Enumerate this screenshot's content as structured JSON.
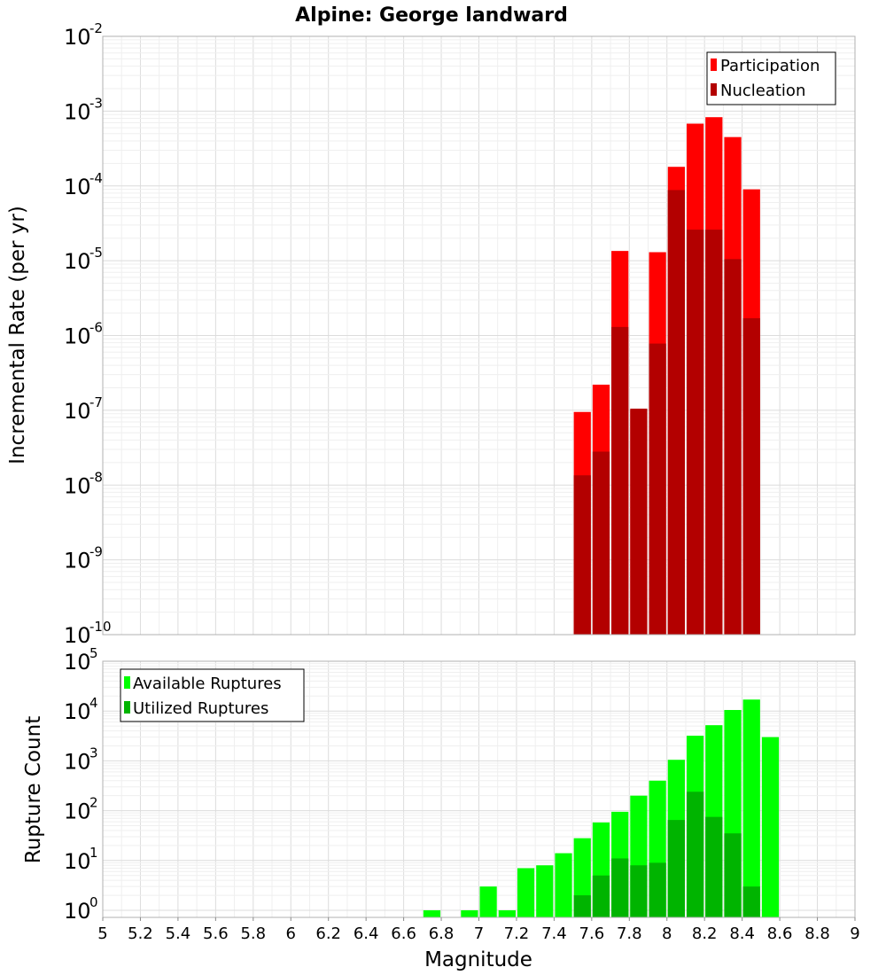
{
  "chart_data": [
    {
      "type": "bar",
      "title": "Alpine: George landward",
      "ylabel": "Incremental Rate (per yr)",
      "y_scale": "log",
      "ylim": [
        1e-10,
        0.01
      ],
      "xlim": [
        5,
        9
      ],
      "x": [
        7.55,
        7.65,
        7.75,
        7.85,
        7.95,
        8.05,
        8.15,
        8.25,
        8.35,
        8.45
      ],
      "series": [
        {
          "name": "Participation",
          "color": "#ff0000",
          "values": [
            9.5e-08,
            2.2e-07,
            1.35e-05,
            1e-07,
            1.3e-05,
            0.00018,
            0.00068,
            0.00083,
            0.00045,
            9e-05
          ]
        },
        {
          "name": "Nucleation",
          "color": "#b30000",
          "values": [
            1.35e-08,
            2.8e-08,
            1.3e-06,
            1.05e-07,
            7.8e-07,
            8.8e-05,
            2.6e-05,
            2.6e-05,
            1.05e-05,
            1.7e-06
          ]
        }
      ],
      "legend": "top-right",
      "grid": true
    },
    {
      "type": "bar",
      "ylabel": "Rupture Count",
      "xlabel": "Magnitude",
      "y_scale": "log",
      "ylim": [
        1,
        100000
      ],
      "xlim": [
        5,
        9
      ],
      "x": [
        6.75,
        6.95,
        7.05,
        7.15,
        7.25,
        7.35,
        7.45,
        7.55,
        7.65,
        7.75,
        7.85,
        7.95,
        8.05,
        8.15,
        8.25,
        8.35,
        8.45,
        8.55
      ],
      "series": [
        {
          "name": "Available Ruptures",
          "color": "#00ff00",
          "values": [
            1,
            1,
            3,
            1,
            7,
            8,
            14,
            28,
            58,
            95,
            200,
            400,
            1050,
            3200,
            5200,
            10500,
            17000,
            3000
          ]
        },
        {
          "name": "Utilized Ruptures",
          "color": "#00b400",
          "values": [
            null,
            null,
            null,
            null,
            null,
            null,
            null,
            2,
            5,
            11,
            8,
            9,
            65,
            240,
            75,
            35,
            3,
            null
          ]
        }
      ],
      "legend": "top-left",
      "grid": true
    }
  ],
  "x_ticks": [
    "5",
    "5.2",
    "5.4",
    "5.6",
    "5.8",
    "6",
    "6.2",
    "6.4",
    "6.6",
    "6.8",
    "7",
    "7.2",
    "7.4",
    "7.6",
    "7.8",
    "8",
    "8.2",
    "8.4",
    "8.6",
    "8.8",
    "9"
  ],
  "top_y_ticks": [
    {
      "base": "10",
      "exp": "-2"
    },
    {
      "base": "10",
      "exp": "-3"
    },
    {
      "base": "10",
      "exp": "-4"
    },
    {
      "base": "10",
      "exp": "-5"
    },
    {
      "base": "10",
      "exp": "-6"
    },
    {
      "base": "10",
      "exp": "-7"
    },
    {
      "base": "10",
      "exp": "-8"
    },
    {
      "base": "10",
      "exp": "-9"
    },
    {
      "base": "10",
      "exp": "-10"
    }
  ],
  "bottom_y_ticks": [
    {
      "base": "10",
      "exp": "5"
    },
    {
      "base": "10",
      "exp": "4"
    },
    {
      "base": "10",
      "exp": "3"
    },
    {
      "base": "10",
      "exp": "2"
    },
    {
      "base": "10",
      "exp": "1"
    },
    {
      "base": "10",
      "exp": "0"
    }
  ]
}
